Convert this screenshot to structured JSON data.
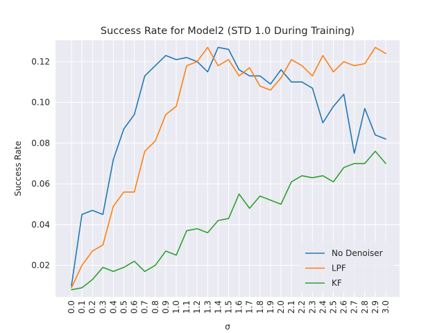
{
  "chart_data": {
    "type": "line",
    "title": "Success Rate for Model2 (STD 1.0 During Training)",
    "xlabel": "σ",
    "ylabel": "Success Rate",
    "x": [
      "0.0",
      "0.1",
      "0.2",
      "0.3",
      "0.4",
      "0.5",
      "0.6",
      "0.7",
      "0.8",
      "0.9",
      "1.0",
      "1.1",
      "1.2",
      "1.3",
      "1.4",
      "1.5",
      "1.6",
      "1.7",
      "1.8",
      "1.9",
      "2.0",
      "2.1",
      "2.2",
      "2.3",
      "2.4",
      "2.5",
      "2.6",
      "2.7",
      "2.8",
      "2.9",
      "3.0"
    ],
    "yticks": [
      "0.02",
      "0.04",
      "0.06",
      "0.08",
      "0.10",
      "0.12"
    ],
    "ylim": [
      0.0045,
      0.1305
    ],
    "grid": true,
    "legend_position": "lower-right",
    "series": [
      {
        "name": "No Denoiser",
        "color": "#1f77b4",
        "values": [
          0.01,
          0.045,
          0.047,
          0.045,
          0.072,
          0.087,
          0.094,
          0.113,
          0.118,
          0.123,
          0.121,
          0.122,
          0.12,
          0.115,
          0.127,
          0.126,
          0.116,
          0.113,
          0.113,
          0.109,
          0.116,
          0.11,
          0.11,
          0.107,
          0.09,
          0.098,
          0.104,
          0.075,
          0.097,
          0.084,
          0.082
        ]
      },
      {
        "name": "LPF",
        "color": "#ff7f0e",
        "values": [
          0.009,
          0.02,
          0.027,
          0.03,
          0.049,
          0.056,
          0.056,
          0.076,
          0.081,
          0.094,
          0.098,
          0.118,
          0.12,
          0.127,
          0.118,
          0.121,
          0.113,
          0.117,
          0.108,
          0.106,
          0.112,
          0.121,
          0.118,
          0.113,
          0.123,
          0.115,
          0.12,
          0.118,
          0.119,
          0.127,
          0.124
        ]
      },
      {
        "name": "KF",
        "color": "#2ca02c",
        "values": [
          0.008,
          0.009,
          0.013,
          0.019,
          0.017,
          0.019,
          0.022,
          0.017,
          0.02,
          0.027,
          0.025,
          0.037,
          0.038,
          0.036,
          0.042,
          0.043,
          0.055,
          0.048,
          0.054,
          0.052,
          0.05,
          0.061,
          0.064,
          0.063,
          0.064,
          0.061,
          0.068,
          0.07,
          0.07,
          0.076,
          0.07
        ]
      }
    ]
  }
}
